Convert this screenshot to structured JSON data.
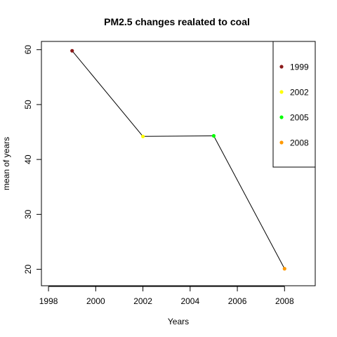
{
  "chart_data": {
    "type": "line",
    "title": "PM2.5 changes realated to coal",
    "xlabel": "Years",
    "ylabel": "mean of years",
    "xlim": [
      1997.7,
      2009.3
    ],
    "ylim": [
      17.0,
      61.5
    ],
    "x_ticks": [
      1998,
      2000,
      2002,
      2004,
      2006,
      2008
    ],
    "y_ticks": [
      20,
      30,
      40,
      50,
      60
    ],
    "grid": false,
    "legend_position": "top-right",
    "x": [
      1999,
      2002,
      2005,
      2008
    ],
    "y": [
      59.8,
      44.2,
      44.3,
      20.1
    ],
    "point_colors": [
      "#8b1a1a",
      "#ffff00",
      "#00ff00",
      "#ff9900"
    ],
    "line_color": "#000000",
    "legend": [
      {
        "label": "1999",
        "color": "#8b1a1a"
      },
      {
        "label": "2002",
        "color": "#ffff00"
      },
      {
        "label": "2005",
        "color": "#00ff00"
      },
      {
        "label": "2008",
        "color": "#ff9900"
      }
    ]
  }
}
